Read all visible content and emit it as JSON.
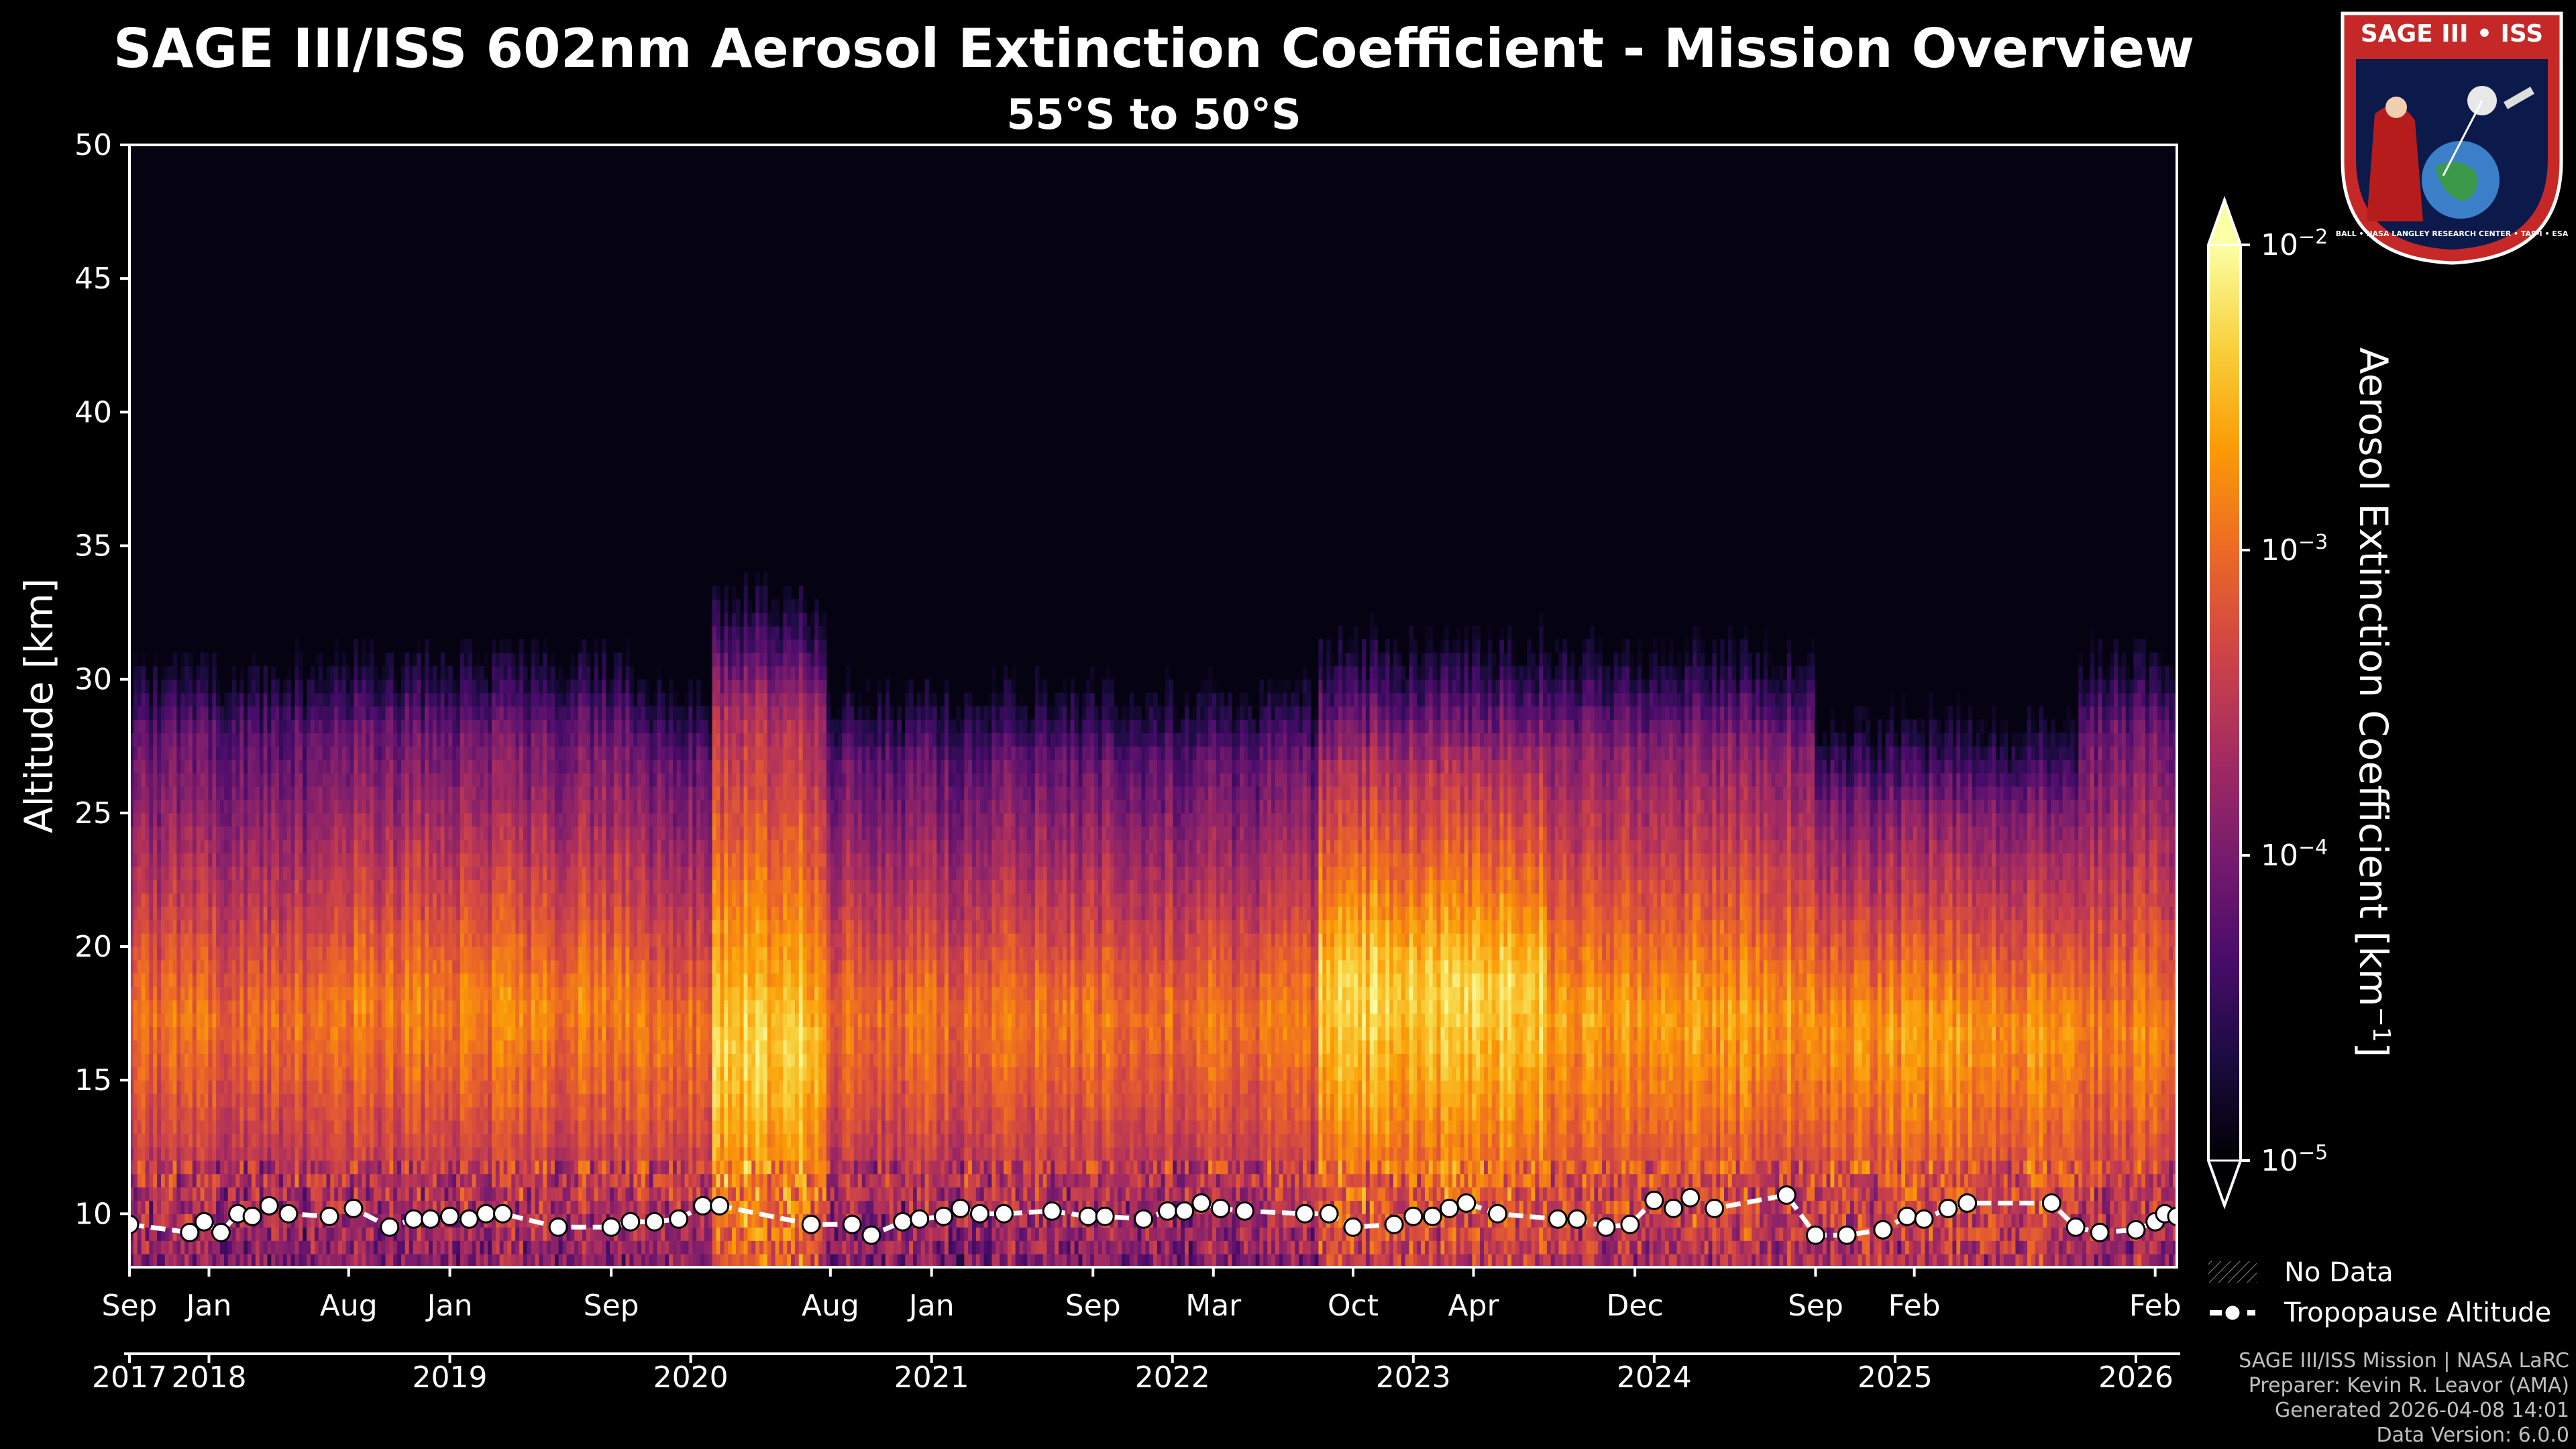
{
  "chart_data": {
    "type": "heatmap",
    "title": "SAGE III/ISS 602nm Aerosol Extinction Coefficient - Mission Overview",
    "subtitle": "55°S to 50°S",
    "ylabel": "Altitude [km]",
    "ylim": [
      8,
      50
    ],
    "yticks": [
      10,
      15,
      20,
      25,
      30,
      35,
      40,
      45,
      50
    ],
    "xlim": [
      2017.67,
      2026.17
    ],
    "month_ticks": [
      {
        "x": 2017.67,
        "label": "Sep"
      },
      {
        "x": 2018.0,
        "label": "Jan"
      },
      {
        "x": 2018.58,
        "label": "Aug"
      },
      {
        "x": 2019.0,
        "label": "Jan"
      },
      {
        "x": 2019.67,
        "label": "Sep"
      },
      {
        "x": 2020.58,
        "label": "Aug"
      },
      {
        "x": 2021.0,
        "label": "Jan"
      },
      {
        "x": 2021.67,
        "label": "Sep"
      },
      {
        "x": 2022.17,
        "label": "Mar"
      },
      {
        "x": 2022.75,
        "label": "Oct"
      },
      {
        "x": 2023.25,
        "label": "Apr"
      },
      {
        "x": 2023.92,
        "label": "Dec"
      },
      {
        "x": 2024.67,
        "label": "Sep"
      },
      {
        "x": 2025.08,
        "label": "Feb"
      },
      {
        "x": 2026.08,
        "label": "Feb"
      }
    ],
    "year_ticks": [
      {
        "x": 2017.67,
        "label": "2017"
      },
      {
        "x": 2018.0,
        "label": "2018"
      },
      {
        "x": 2019.0,
        "label": "2019"
      },
      {
        "x": 2020.0,
        "label": "2020"
      },
      {
        "x": 2021.0,
        "label": "2021"
      },
      {
        "x": 2022.0,
        "label": "2022"
      },
      {
        "x": 2023.0,
        "label": "2023"
      },
      {
        "x": 2024.0,
        "label": "2024"
      },
      {
        "x": 2025.0,
        "label": "2025"
      },
      {
        "x": 2026.0,
        "label": "2026"
      }
    ],
    "colorbar": {
      "label": "Aerosol Extinction Coefficient [km",
      "label_sup": "−1",
      "label_close": "]",
      "scale": "log",
      "min": 1e-05,
      "max": 0.01,
      "ticks": [
        {
          "exp": -2,
          "base": "10",
          "sup": "−2"
        },
        {
          "exp": -3,
          "base": "10",
          "sup": "−3"
        },
        {
          "exp": -4,
          "base": "10",
          "sup": "−4"
        },
        {
          "exp": -5,
          "base": "10",
          "sup": "−5"
        }
      ],
      "colormap": [
        "#000004",
        "#1b0c41",
        "#4a0c6b",
        "#781c6d",
        "#a52c60",
        "#cf4446",
        "#ed6925",
        "#fb9b06",
        "#f7d13d",
        "#fcffa4"
      ]
    },
    "heatmap_episodes": [
      {
        "start": 2017.67,
        "end": 2018.55,
        "peak_alt": 17.5,
        "peak_log": -3.0,
        "top_alt": 28
      },
      {
        "start": 2018.55,
        "end": 2019.75,
        "peak_alt": 18.0,
        "peak_log": -2.85,
        "top_alt": 28
      },
      {
        "start": 2019.75,
        "end": 2020.08,
        "peak_alt": 17.0,
        "peak_log": -2.95,
        "top_alt": 27
      },
      {
        "start": 2020.08,
        "end": 2020.55,
        "peak_alt": 16.5,
        "peak_log": -2.35,
        "top_alt": 28.5
      },
      {
        "start": 2020.55,
        "end": 2022.6,
        "peak_alt": 17.5,
        "peak_log": -2.95,
        "top_alt": 27
      },
      {
        "start": 2022.6,
        "end": 2023.55,
        "peak_alt": 18.5,
        "peak_log": -2.3,
        "top_alt": 26.5
      },
      {
        "start": 2023.55,
        "end": 2024.65,
        "peak_alt": 17.5,
        "peak_log": -2.65,
        "top_alt": 27.5
      },
      {
        "start": 2024.65,
        "end": 2025.75,
        "peak_alt": 17.0,
        "peak_log": -2.7,
        "top_alt": 25
      },
      {
        "start": 2025.75,
        "end": 2026.17,
        "peak_alt": 17.0,
        "peak_log": -2.85,
        "top_alt": 28
      }
    ],
    "tropopause": {
      "name": "Tropopause Altitude",
      "points": [
        [
          2017.67,
          9.6
        ],
        [
          2017.92,
          9.3
        ],
        [
          2017.98,
          9.7
        ],
        [
          2018.05,
          9.3
        ],
        [
          2018.12,
          10.0
        ],
        [
          2018.18,
          9.9
        ],
        [
          2018.25,
          10.3
        ],
        [
          2018.33,
          10.0
        ],
        [
          2018.5,
          9.9
        ],
        [
          2018.6,
          10.2
        ],
        [
          2018.75,
          9.5
        ],
        [
          2018.85,
          9.8
        ],
        [
          2018.92,
          9.8
        ],
        [
          2019.0,
          9.9
        ],
        [
          2019.08,
          9.8
        ],
        [
          2019.15,
          10.0
        ],
        [
          2019.22,
          10.0
        ],
        [
          2019.45,
          9.5
        ],
        [
          2019.67,
          9.5
        ],
        [
          2019.75,
          9.7
        ],
        [
          2019.85,
          9.7
        ],
        [
          2019.95,
          9.8
        ],
        [
          2020.05,
          10.3
        ],
        [
          2020.12,
          10.3
        ],
        [
          2020.5,
          9.6
        ],
        [
          2020.67,
          9.6
        ],
        [
          2020.75,
          9.2
        ],
        [
          2020.88,
          9.7
        ],
        [
          2020.95,
          9.8
        ],
        [
          2021.05,
          9.9
        ],
        [
          2021.12,
          10.2
        ],
        [
          2021.2,
          10.0
        ],
        [
          2021.3,
          10.0
        ],
        [
          2021.5,
          10.1
        ],
        [
          2021.65,
          9.9
        ],
        [
          2021.72,
          9.9
        ],
        [
          2021.88,
          9.8
        ],
        [
          2021.98,
          10.1
        ],
        [
          2022.05,
          10.1
        ],
        [
          2022.12,
          10.4
        ],
        [
          2022.2,
          10.2
        ],
        [
          2022.3,
          10.1
        ],
        [
          2022.55,
          10.0
        ],
        [
          2022.65,
          10.0
        ],
        [
          2022.75,
          9.5
        ],
        [
          2022.92,
          9.6
        ],
        [
          2023.0,
          9.9
        ],
        [
          2023.08,
          9.9
        ],
        [
          2023.15,
          10.2
        ],
        [
          2023.22,
          10.4
        ],
        [
          2023.35,
          10.0
        ],
        [
          2023.6,
          9.8
        ],
        [
          2023.68,
          9.8
        ],
        [
          2023.8,
          9.5
        ],
        [
          2023.9,
          9.6
        ],
        [
          2024.0,
          10.5
        ],
        [
          2024.08,
          10.2
        ],
        [
          2024.15,
          10.6
        ],
        [
          2024.25,
          10.2
        ],
        [
          2024.55,
          10.7
        ],
        [
          2024.67,
          9.2
        ],
        [
          2024.8,
          9.2
        ],
        [
          2024.95,
          9.4
        ],
        [
          2025.05,
          9.9
        ],
        [
          2025.12,
          9.8
        ],
        [
          2025.22,
          10.2
        ],
        [
          2025.3,
          10.4
        ],
        [
          2025.65,
          10.4
        ],
        [
          2025.75,
          9.5
        ],
        [
          2025.85,
          9.3
        ],
        [
          2026.0,
          9.4
        ],
        [
          2026.08,
          9.7
        ],
        [
          2026.12,
          10.0
        ],
        [
          2026.17,
          9.9
        ]
      ]
    },
    "legend": [
      {
        "label": "No Data",
        "symbol": "hatch"
      },
      {
        "label": "Tropopause Altitude",
        "symbol": "line-marker"
      }
    ]
  },
  "logo": {
    "line1": "SAGE III • ISS",
    "bottom_ring": "BALL • NASA LANGLEY RESEARCH CENTER • TAS-I • ESA"
  },
  "footer": [
    "SAGE III/ISS Mission | NASA LaRC",
    "Preparer: Kevin R. Leavor (AMA)",
    "Generated 2026-04-08 14:01",
    "Data Version: 6.0.0"
  ]
}
